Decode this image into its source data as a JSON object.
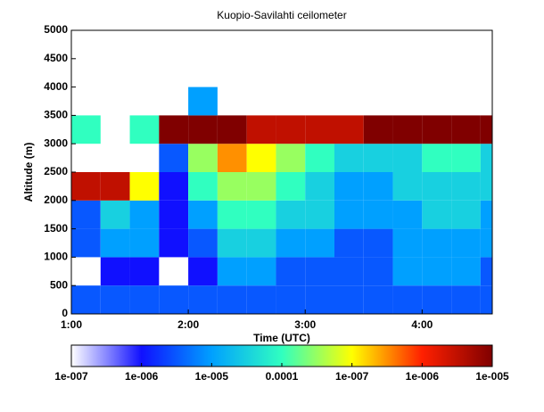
{
  "chart_data": {
    "type": "heatmap",
    "title": "Kuopio-Savilahti ceilometer",
    "xlabel": "Time (UTC)",
    "ylabel": "Altitude (m)",
    "xlim": [
      1,
      4.6
    ],
    "xticks": [
      {
        "value": 1,
        "label": "1:00"
      },
      {
        "value": 2,
        "label": "2:00"
      },
      {
        "value": 3,
        "label": "3:00"
      },
      {
        "value": 4,
        "label": "4:00"
      }
    ],
    "ylim": [
      0,
      5000
    ],
    "yticks": [
      0,
      500,
      1000,
      1500,
      2000,
      2500,
      3000,
      3500,
      4000,
      4500,
      5000
    ],
    "xbins": [
      1,
      1.25,
      1.5,
      1.75,
      2,
      2.25,
      2.5,
      2.75,
      3,
      3.25,
      3.5,
      3.75,
      4,
      4.25,
      4.5,
      4.6
    ],
    "ybins": [
      0,
      500,
      1000,
      1500,
      2000,
      2500,
      3000,
      3500,
      4000,
      4500,
      5000
    ],
    "values": [
      [
        1.5,
        1.5,
        1.5,
        1.5,
        1.5,
        1.5,
        1.5,
        1.5,
        1.5,
        1.5,
        1.5,
        1.5,
        1.5,
        1.5,
        1.5
      ],
      [
        null,
        1,
        1,
        null,
        1,
        2,
        2,
        1.5,
        1.5,
        1.5,
        1.5,
        2,
        2,
        2,
        1.5
      ],
      [
        1.5,
        2,
        2,
        1,
        1.5,
        2.5,
        2.5,
        2,
        2,
        1.5,
        1.5,
        2,
        2,
        2,
        2
      ],
      [
        1.5,
        2.5,
        2,
        1,
        2,
        3,
        3,
        2.5,
        2.5,
        2,
        2,
        2,
        2.5,
        2.5,
        2
      ],
      [
        5.5,
        5.5,
        4,
        1,
        3,
        3.5,
        3.5,
        3,
        2.5,
        2,
        2,
        2.5,
        2.5,
        2.5,
        2.5
      ],
      [
        null,
        null,
        null,
        1.5,
        3.5,
        4.5,
        4,
        3.5,
        3,
        2.5,
        2.5,
        2.5,
        3,
        3,
        2.5
      ],
      [
        3,
        null,
        3,
        6,
        6,
        6,
        5.5,
        5.5,
        5.5,
        5.5,
        6,
        6,
        6,
        6,
        6
      ],
      [
        null,
        null,
        null,
        null,
        2,
        null,
        null,
        null,
        null,
        null,
        null,
        null,
        null,
        null,
        null
      ],
      [
        null,
        null,
        null,
        null,
        null,
        null,
        null,
        null,
        null,
        null,
        null,
        null,
        null,
        null,
        null
      ],
      [
        null,
        null,
        null,
        null,
        null,
        null,
        null,
        null,
        null,
        null,
        null,
        null,
        null,
        null,
        null
      ]
    ],
    "colormap": [
      "#ffffff",
      "#1010ff",
      "#00a0ff",
      "#30ffc0",
      "#ffff00",
      "#ff2000",
      "#800000"
    ],
    "colorbar_labels": [
      "1e-007",
      "1e-006",
      "1e-005",
      "0.0001",
      "1e-007",
      "1e-006",
      "1e-005"
    ]
  }
}
